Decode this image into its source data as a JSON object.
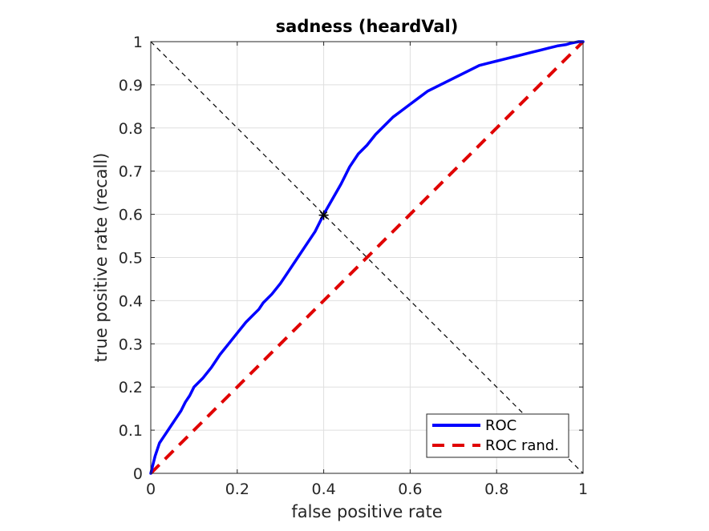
{
  "chart_data": {
    "type": "line",
    "title": "sadness (heardVal)",
    "xlabel": "false positive rate",
    "ylabel": "true positive rate (recall)",
    "xlim": [
      0,
      1
    ],
    "ylim": [
      0,
      1
    ],
    "xticks": [
      0,
      0.2,
      0.4,
      0.6,
      0.8,
      1
    ],
    "yticks": [
      0,
      0.1,
      0.2,
      0.3,
      0.4,
      0.5,
      0.6,
      0.7,
      0.8,
      0.9,
      1
    ],
    "xtick_labels": [
      "0",
      "0.2",
      "0.4",
      "0.6",
      "0.8",
      "1"
    ],
    "ytick_labels": [
      "0",
      "0.1",
      "0.2",
      "0.3",
      "0.4",
      "0.5",
      "0.6",
      "0.7",
      "0.8",
      "0.9",
      "1"
    ],
    "grid": true,
    "legend_position": "bottom-right",
    "series": [
      {
        "name": "ROC",
        "color": "#0000ff",
        "style": "solid",
        "x": [
          0,
          0.005,
          0.01,
          0.02,
          0.03,
          0.04,
          0.05,
          0.06,
          0.07,
          0.08,
          0.09,
          0.1,
          0.12,
          0.14,
          0.15,
          0.16,
          0.18,
          0.2,
          0.22,
          0.24,
          0.25,
          0.26,
          0.28,
          0.3,
          0.32,
          0.34,
          0.36,
          0.38,
          0.4,
          0.42,
          0.44,
          0.46,
          0.48,
          0.5,
          0.52,
          0.54,
          0.56,
          0.58,
          0.6,
          0.62,
          0.64,
          0.66,
          0.68,
          0.7,
          0.72,
          0.74,
          0.76,
          0.78,
          0.8,
          0.82,
          0.84,
          0.86,
          0.88,
          0.9,
          0.92,
          0.94,
          0.96,
          0.97,
          0.98,
          0.99,
          1.0
        ],
        "y": [
          0,
          0.02,
          0.04,
          0.07,
          0.085,
          0.1,
          0.115,
          0.13,
          0.145,
          0.165,
          0.18,
          0.2,
          0.22,
          0.245,
          0.26,
          0.275,
          0.3,
          0.325,
          0.35,
          0.37,
          0.38,
          0.395,
          0.415,
          0.44,
          0.47,
          0.5,
          0.53,
          0.56,
          0.6,
          0.635,
          0.67,
          0.71,
          0.74,
          0.76,
          0.785,
          0.805,
          0.825,
          0.84,
          0.855,
          0.87,
          0.885,
          0.895,
          0.905,
          0.915,
          0.925,
          0.935,
          0.945,
          0.95,
          0.955,
          0.96,
          0.965,
          0.97,
          0.975,
          0.98,
          0.985,
          0.99,
          0.993,
          0.996,
          0.998,
          1.0,
          1.0
        ]
      },
      {
        "name": "ROC rand.",
        "color": "#e00000",
        "style": "dashed",
        "x": [
          0,
          1
        ],
        "y": [
          0,
          1
        ]
      }
    ],
    "reference_line": {
      "color": "#000000",
      "style": "dashed",
      "x": [
        0,
        1
      ],
      "y": [
        1,
        0
      ]
    },
    "marker": {
      "symbol": "*",
      "color": "#000000",
      "x": 0.4,
      "y": 0.598
    }
  }
}
